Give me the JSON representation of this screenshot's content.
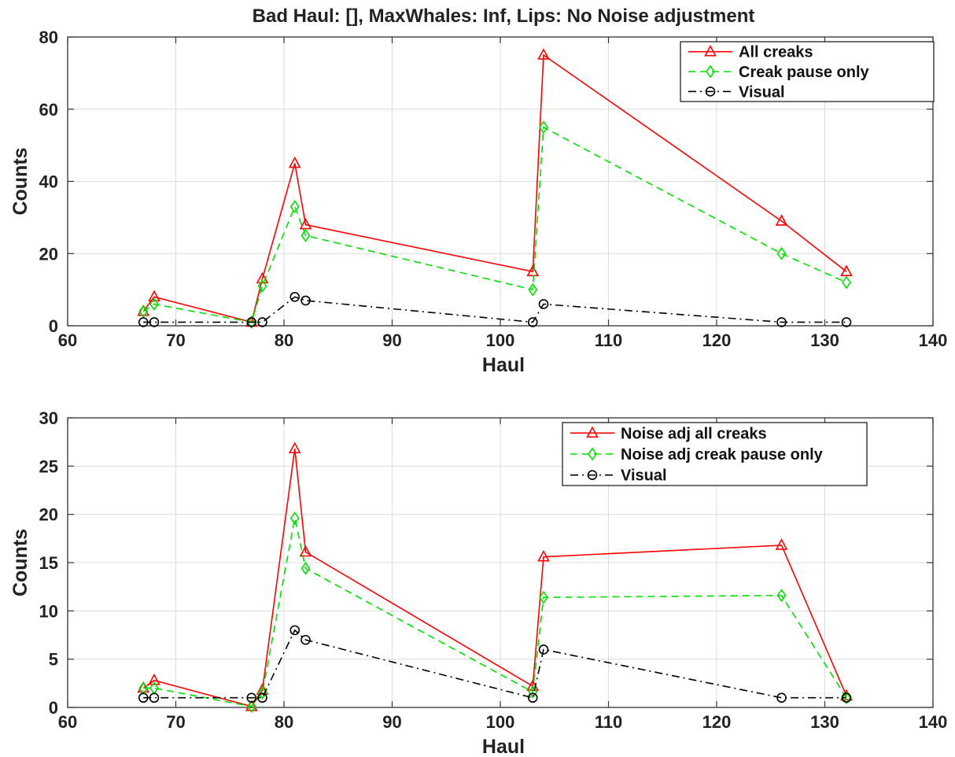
{
  "figure_title": "Bad Haul: [], MaxWhales: Inf, Lips: No Noise adjustment",
  "chart_data": [
    {
      "type": "line",
      "xlabel": "Haul",
      "ylabel": "Counts",
      "xlim": [
        60,
        140
      ],
      "ylim": [
        0,
        80
      ],
      "xticks": [
        60,
        70,
        80,
        90,
        100,
        110,
        120,
        130,
        140
      ],
      "yticks": [
        0,
        20,
        40,
        60,
        80
      ],
      "grid": true,
      "legend_position": "top-right",
      "x": [
        67,
        68,
        77,
        78,
        81,
        82,
        103,
        104,
        126,
        132
      ],
      "series": [
        {
          "name": "All creaks",
          "color": "#ff0000",
          "dash": "solid",
          "marker": "triangle",
          "values": [
            4,
            8,
            1,
            13,
            45,
            28,
            15,
            75,
            29,
            15
          ]
        },
        {
          "name": "Creak pause only",
          "color": "#00e000",
          "dash": "dashed",
          "marker": "diamond",
          "values": [
            4,
            6,
            1,
            11,
            33,
            25,
            10,
            55,
            20,
            12
          ]
        },
        {
          "name": "Visual",
          "color": "#000000",
          "dash": "dashdot",
          "marker": "circle",
          "values": [
            1,
            1,
            1,
            1,
            8,
            7,
            1,
            6,
            1,
            1
          ]
        }
      ]
    },
    {
      "type": "line",
      "xlabel": "Haul",
      "ylabel": "Counts",
      "xlim": [
        60,
        140
      ],
      "ylim": [
        0,
        30
      ],
      "xticks": [
        60,
        70,
        80,
        90,
        100,
        110,
        120,
        130,
        140
      ],
      "yticks": [
        0,
        5,
        10,
        15,
        20,
        25,
        30
      ],
      "grid": true,
      "legend_position": "top-right",
      "x": [
        67,
        68,
        77,
        78,
        81,
        82,
        103,
        104,
        126,
        132
      ],
      "series": [
        {
          "name": "Noise adj all creaks",
          "color": "#ff0000",
          "dash": "solid",
          "marker": "triangle",
          "values": [
            2,
            2.8,
            0.1,
            1.8,
            26.8,
            16.1,
            2.2,
            15.6,
            16.8,
            1.2
          ]
        },
        {
          "name": "Noise adj creak pause only",
          "color": "#00e000",
          "dash": "dashed",
          "marker": "diamond",
          "values": [
            2,
            2,
            0.1,
            1.5,
            19.6,
            14.4,
            1.6,
            11.4,
            11.6,
            1
          ]
        },
        {
          "name": "Visual",
          "color": "#000000",
          "dash": "dashdot",
          "marker": "circle",
          "values": [
            1,
            1,
            1,
            1,
            8,
            7,
            1,
            6,
            1,
            1
          ]
        }
      ]
    }
  ]
}
